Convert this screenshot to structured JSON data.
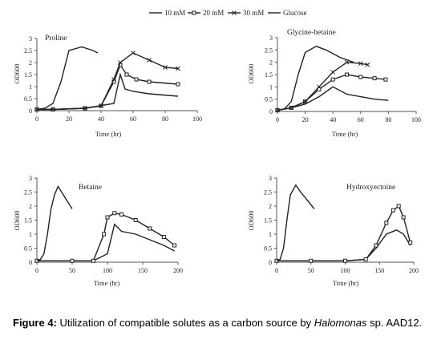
{
  "legend": [
    {
      "label": "10 mM",
      "marker": "none"
    },
    {
      "label": "20 mM",
      "marker": "square"
    },
    {
      "label": "30 mM",
      "marker": "cross"
    },
    {
      "label": "Glucose",
      "marker": "none"
    }
  ],
  "caption": {
    "label": "Figure 4:",
    "text": " Utilization of compatible solutes as a carbon source by ",
    "italic": "Halomonas",
    "tail": " sp. AAD12."
  },
  "chart_data": [
    {
      "type": "line",
      "title": "Proline",
      "xlabel": "Time (hr)",
      "ylabel": "OD600",
      "xlim": [
        0,
        100
      ],
      "ylim": [
        0,
        3
      ],
      "xticks": [
        "0",
        "20",
        "40",
        "60",
        "80",
        "100"
      ],
      "yticks": [
        "0",
        "0.5",
        "1",
        "1.5",
        "2",
        "2.5",
        "3"
      ],
      "series": [
        {
          "name": "10 mM",
          "x": [
            0,
            10,
            30,
            48,
            52,
            55,
            60,
            70,
            88
          ],
          "y": [
            0.05,
            0.05,
            0.1,
            0.3,
            1.5,
            0.9,
            0.8,
            0.7,
            0.6
          ]
        },
        {
          "name": "20 mM",
          "x": [
            0,
            10,
            30,
            40,
            48,
            52,
            56,
            62,
            70,
            88
          ],
          "y": [
            0.05,
            0.05,
            0.1,
            0.2,
            1.2,
            1.9,
            1.5,
            1.3,
            1.2,
            1.1
          ]
        },
        {
          "name": "30 mM",
          "x": [
            0,
            10,
            30,
            40,
            48,
            52,
            60,
            70,
            80,
            88
          ],
          "y": [
            0.05,
            0.05,
            0.1,
            0.2,
            1.3,
            2.0,
            2.4,
            2.1,
            1.8,
            1.75
          ]
        },
        {
          "name": "Glucose",
          "x": [
            0,
            5,
            10,
            15,
            20,
            28,
            35,
            38
          ],
          "y": [
            0.05,
            0.1,
            0.3,
            1.2,
            2.5,
            2.65,
            2.5,
            2.4
          ]
        }
      ]
    },
    {
      "type": "line",
      "title": "Glycine-betaine",
      "xlabel": "Time (hr)",
      "ylabel": "OD600",
      "xlim": [
        0,
        100
      ],
      "ylim": [
        0,
        3
      ],
      "xticks": [
        "0",
        "20",
        "40",
        "60",
        "80",
        "100"
      ],
      "yticks": [
        "0",
        "0.5",
        "1",
        "1.5",
        "2",
        "2.5",
        "3"
      ],
      "series": [
        {
          "name": "10 mM",
          "x": [
            0,
            10,
            20,
            30,
            40,
            50,
            60,
            70,
            80
          ],
          "y": [
            0.05,
            0.15,
            0.3,
            0.6,
            1.0,
            0.7,
            0.6,
            0.5,
            0.45
          ]
        },
        {
          "name": "20 mM",
          "x": [
            0,
            10,
            20,
            30,
            40,
            50,
            60,
            70,
            78
          ],
          "y": [
            0.05,
            0.15,
            0.4,
            0.9,
            1.3,
            1.5,
            1.4,
            1.35,
            1.3
          ]
        },
        {
          "name": "30 mM",
          "x": [
            0,
            10,
            20,
            30,
            40,
            50,
            60,
            65
          ],
          "y": [
            0.05,
            0.15,
            0.4,
            1.0,
            1.6,
            2.0,
            1.95,
            1.9
          ]
        },
        {
          "name": "Glucose",
          "x": [
            0,
            5,
            10,
            15,
            20,
            28,
            35,
            45,
            55
          ],
          "y": [
            0.05,
            0.1,
            0.4,
            1.5,
            2.4,
            2.65,
            2.5,
            2.2,
            2.0
          ]
        }
      ]
    },
    {
      "type": "line",
      "title": "Betaine",
      "xlabel": "Time (hr)",
      "ylabel": "OD600",
      "xlim": [
        0,
        200
      ],
      "ylim": [
        0,
        3
      ],
      "xticks": [
        "0",
        "50",
        "100",
        "150",
        "200"
      ],
      "yticks": [
        "0",
        "0.5",
        "1",
        "1.5",
        "2",
        "2.5",
        "3"
      ],
      "series": [
        {
          "name": "10 mM",
          "x": [
            0,
            50,
            80,
            100,
            110,
            120,
            140,
            160,
            180,
            195
          ],
          "y": [
            0.05,
            0.05,
            0.05,
            0.3,
            1.35,
            1.1,
            1.0,
            0.8,
            0.6,
            0.4
          ]
        },
        {
          "name": "20 mM",
          "x": [
            0,
            50,
            80,
            95,
            100,
            110,
            120,
            140,
            160,
            180,
            195
          ],
          "y": [
            0.05,
            0.05,
            0.05,
            1.0,
            1.6,
            1.75,
            1.7,
            1.5,
            1.2,
            0.9,
            0.6
          ]
        },
        {
          "name": "Glucose",
          "x": [
            0,
            5,
            10,
            15,
            20,
            25,
            30,
            35,
            40,
            45,
            50
          ],
          "y": [
            0.05,
            0.1,
            0.3,
            1.0,
            1.9,
            2.4,
            2.7,
            2.5,
            2.3,
            2.1,
            1.9
          ]
        }
      ]
    },
    {
      "type": "line",
      "title": "Hydroxyectoine",
      "xlabel": "Time (hr)",
      "ylabel": "OD600",
      "xlim": [
        0,
        200
      ],
      "ylim": [
        0,
        3
      ],
      "xticks": [
        "0",
        "50",
        "100",
        "150",
        "200"
      ],
      "yticks": [
        "0",
        "0.5",
        "1",
        "1.5",
        "2",
        "2.5",
        "3"
      ],
      "series": [
        {
          "name": "10 mM",
          "x": [
            0,
            50,
            100,
            130,
            145,
            160,
            175,
            185,
            195
          ],
          "y": [
            0.05,
            0.05,
            0.05,
            0.1,
            0.5,
            1.0,
            1.15,
            1.0,
            0.6
          ]
        },
        {
          "name": "20 mM",
          "x": [
            0,
            50,
            100,
            130,
            145,
            160,
            170,
            178,
            185,
            195
          ],
          "y": [
            0.05,
            0.05,
            0.05,
            0.1,
            0.6,
            1.4,
            1.85,
            2.0,
            1.6,
            0.7
          ]
        },
        {
          "name": "Glucose",
          "x": [
            0,
            5,
            10,
            15,
            20,
            28,
            35,
            45,
            55
          ],
          "y": [
            0.05,
            0.1,
            0.5,
            1.5,
            2.4,
            2.75,
            2.5,
            2.2,
            1.9
          ]
        }
      ]
    }
  ]
}
